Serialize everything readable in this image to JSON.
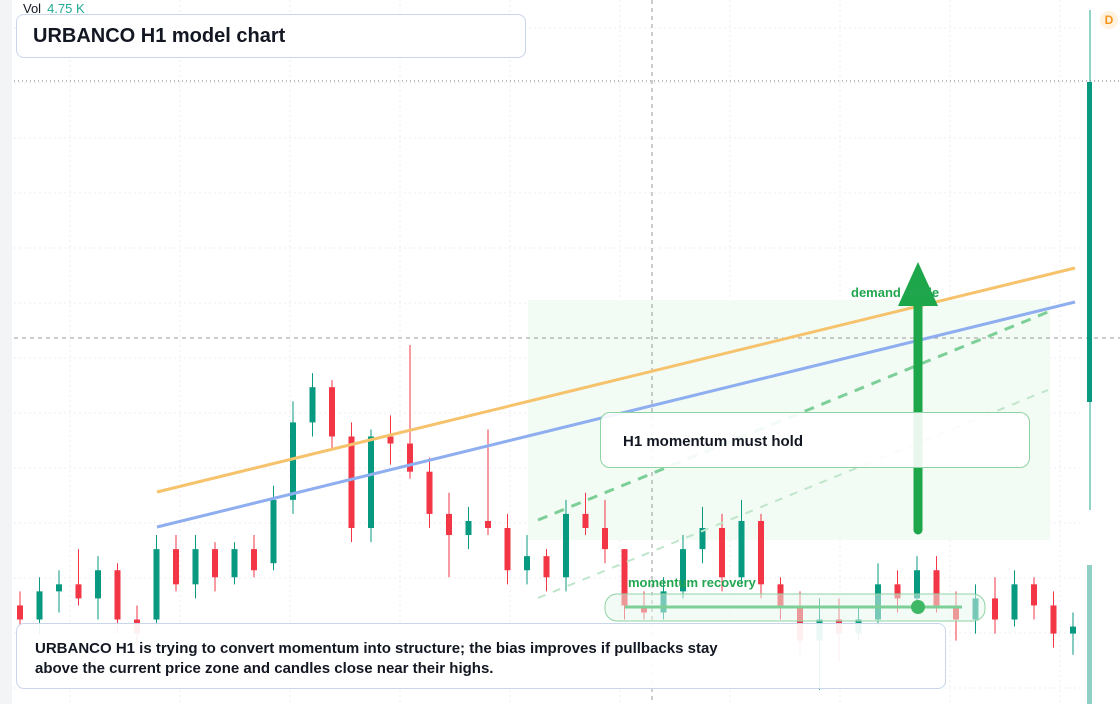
{
  "header": {
    "vol_label": "Vol",
    "vol_value": "4.75 K",
    "title": "URBANCO H1 model chart",
    "badge": "D"
  },
  "annotations": {
    "demand": "demand guide",
    "callout": "H1 momentum must hold",
    "recovery": "momentum recovery"
  },
  "caption": "URBANCO H1 is trying to convert momentum into structure; the bias improves if pullbacks stay above the current price zone and candles close near their highs.",
  "chart_data": {
    "type": "candlestick",
    "ylim": [
      0,
      100
    ],
    "up_color": "#089981",
    "down_color": "#f23645",
    "candles": [
      [
        14,
        16,
        11,
        12
      ],
      [
        12,
        18,
        10,
        16
      ],
      [
        16,
        19,
        13,
        17
      ],
      [
        17,
        22,
        14,
        15
      ],
      [
        15,
        21,
        12,
        19
      ],
      [
        19,
        20,
        10,
        12
      ],
      [
        12,
        14,
        8,
        10
      ],
      [
        12,
        24,
        11,
        22
      ],
      [
        22,
        24,
        16,
        17
      ],
      [
        17,
        24,
        15,
        22
      ],
      [
        22,
        23,
        16,
        18
      ],
      [
        18,
        23,
        17,
        22
      ],
      [
        22,
        24,
        18,
        19
      ],
      [
        20,
        31,
        19,
        29
      ],
      [
        29,
        43,
        27,
        40
      ],
      [
        40,
        47,
        38,
        45
      ],
      [
        45,
        46,
        36,
        38
      ],
      [
        38,
        40,
        23,
        25
      ],
      [
        25,
        39,
        23,
        38
      ],
      [
        38,
        41,
        34,
        37
      ],
      [
        37,
        51,
        32,
        33
      ],
      [
        33,
        35,
        25,
        27
      ],
      [
        27,
        30,
        18,
        24
      ],
      [
        24,
        28,
        22,
        26
      ],
      [
        26,
        39,
        24,
        25
      ],
      [
        25,
        27,
        17,
        19
      ],
      [
        19,
        24,
        17,
        21
      ],
      [
        21,
        22,
        16,
        18
      ],
      [
        18,
        29,
        16,
        27
      ],
      [
        27,
        30,
        24,
        25
      ],
      [
        25,
        29,
        20,
        22
      ],
      [
        22,
        22,
        12,
        14
      ],
      [
        14,
        16,
        12,
        13
      ],
      [
        13,
        18,
        12,
        16
      ],
      [
        16,
        24,
        15,
        22
      ],
      [
        22,
        28,
        20,
        25
      ],
      [
        25,
        27,
        16,
        18
      ],
      [
        18,
        29,
        17,
        26
      ],
      [
        26,
        27,
        15,
        17
      ],
      [
        17,
        18,
        12,
        14
      ],
      [
        14,
        16,
        7,
        9
      ],
      [
        9,
        15,
        2,
        12
      ],
      [
        12,
        15,
        6,
        10
      ],
      [
        10,
        14,
        9,
        12
      ],
      [
        12,
        20,
        11,
        17
      ],
      [
        17,
        19,
        13,
        15
      ],
      [
        15,
        21,
        14,
        19
      ],
      [
        19,
        21,
        13,
        14
      ],
      [
        14,
        16,
        9,
        12
      ],
      [
        12,
        17,
        10,
        15
      ],
      [
        15,
        18,
        10,
        12
      ],
      [
        12,
        19,
        11,
        17
      ],
      [
        17,
        18,
        12,
        14
      ],
      [
        14,
        16,
        8,
        10
      ],
      [
        10,
        13,
        7,
        11
      ]
    ]
  }
}
